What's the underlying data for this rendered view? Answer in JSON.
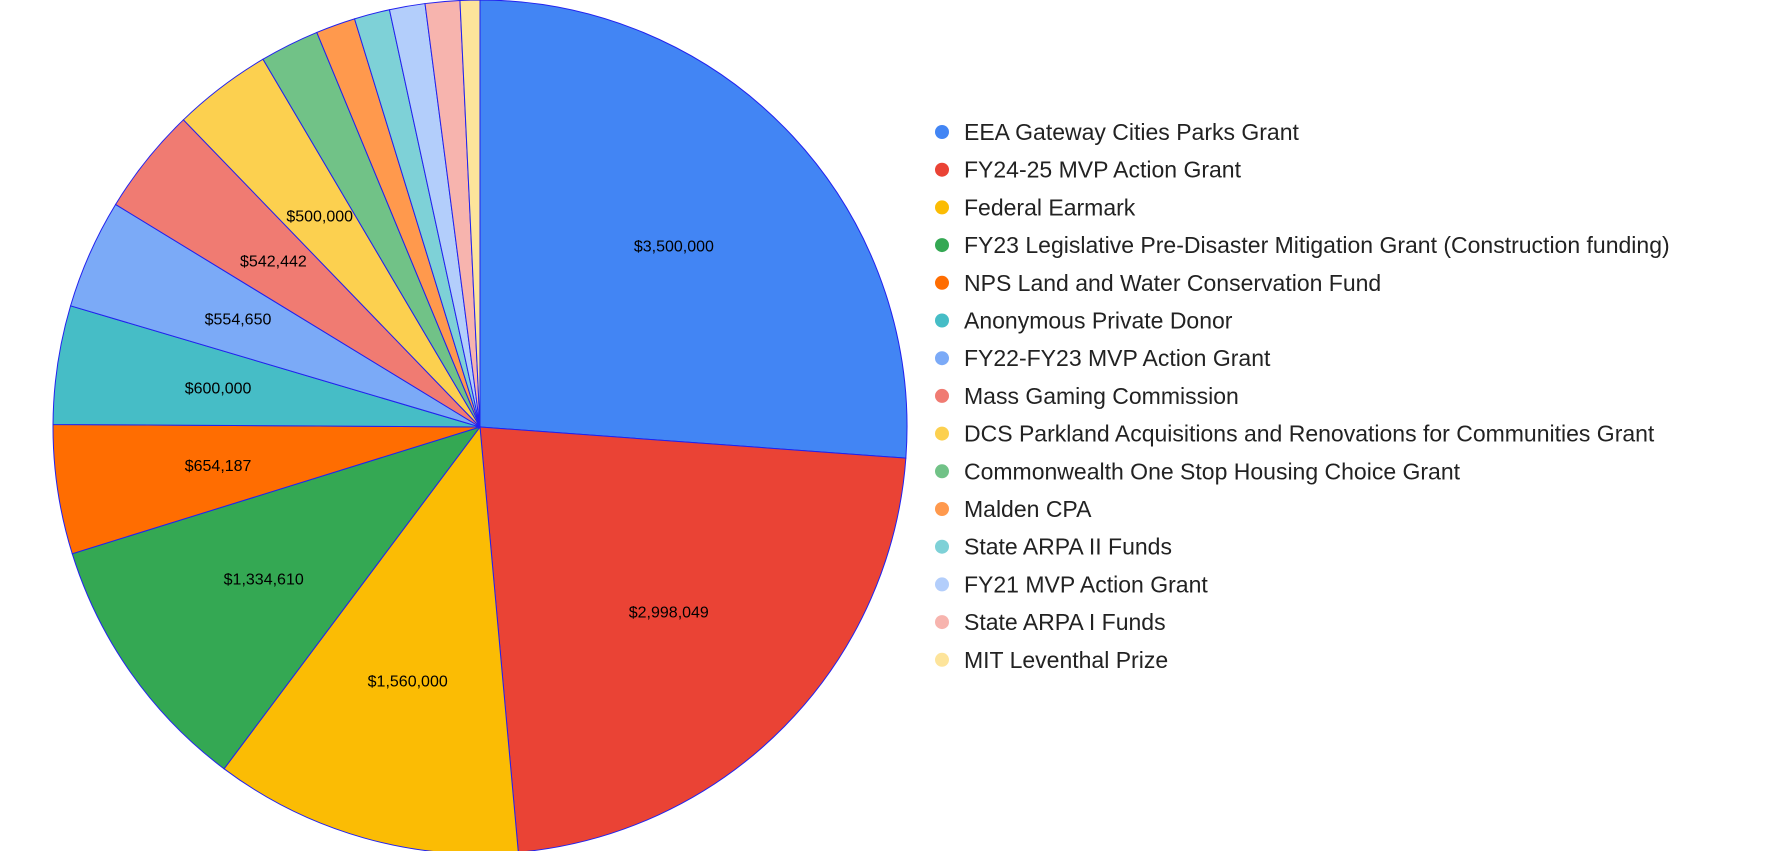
{
  "chart_data": {
    "type": "pie",
    "title": "",
    "legend_position": "right",
    "slices": [
      {
        "label": "EEA Gateway Cities Parks Grant",
        "value": 3500000,
        "value_label": "$3,500,000",
        "color": "#4285f4"
      },
      {
        "label": "FY24-25 MVP Action Grant",
        "value": 2998049,
        "value_label": "$2,998,049",
        "color": "#ea4335"
      },
      {
        "label": "Federal Earmark",
        "value": 1560000,
        "value_label": "$1,560,000",
        "color": "#fbbc04"
      },
      {
        "label": "FY23 Legislative Pre-Disaster Mitigation Grant (Construction funding)",
        "value": 1334610,
        "value_label": "$1,334,610",
        "color": "#34a853"
      },
      {
        "label": "NPS Land and Water Conservation Fund",
        "value": 654187,
        "value_label": "$654,187",
        "color": "#ff6d01"
      },
      {
        "label": "Anonymous Private Donor",
        "value": 600000,
        "value_label": "$600,000",
        "color": "#46bdc6"
      },
      {
        "label": "FY22-FY23 MVP Action Grant",
        "value": 554650,
        "value_label": "$554,650",
        "color": "#7baaf7"
      },
      {
        "label": "Mass Gaming Commission",
        "value": 542442,
        "value_label": "$542,442",
        "color": "#f07b72"
      },
      {
        "label": "DCS Parkland Acquisitions and Renovations for Communities Grant",
        "value": 500000,
        "value_label": "$500,000",
        "color": "#fcd04f"
      },
      {
        "label": "Commonwealth One Stop Housing Choice Grant",
        "value": 300000,
        "value_label": "",
        "color": "#71c287"
      },
      {
        "label": "Malden CPA",
        "value": 200000,
        "value_label": "",
        "color": "#ff994d"
      },
      {
        "label": "State ARPA II Funds",
        "value": 180000,
        "value_label": "",
        "color": "#7ed1d7"
      },
      {
        "label": "FY21 MVP Action Grant",
        "value": 180000,
        "value_label": "",
        "color": "#b3cefb"
      },
      {
        "label": "State ARPA I Funds",
        "value": 175000,
        "value_label": "",
        "color": "#f7b4ae"
      },
      {
        "label": "MIT Leventhal Prize",
        "value": 100000,
        "value_label": "",
        "color": "#fde49b"
      }
    ]
  }
}
